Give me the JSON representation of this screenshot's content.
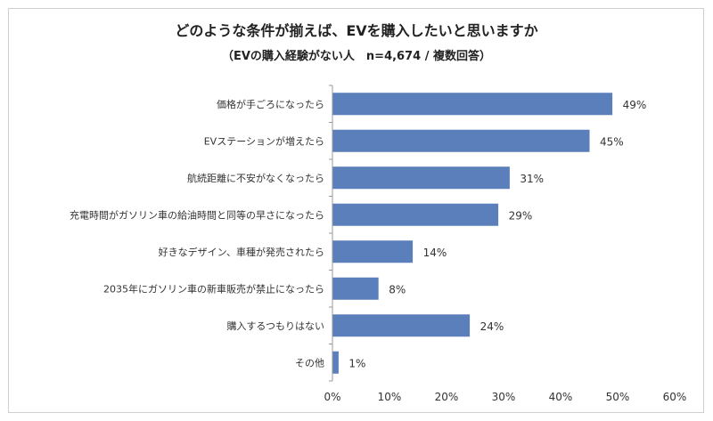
{
  "chart_data": {
    "type": "bar",
    "orientation": "horizontal",
    "title": "どのような条件が揃えば、EVを購入したいと思いますか",
    "subtitle": "（EVの購入経験がない人　n=4,674 / 複数回答）",
    "categories": [
      "価格が手ごろになったら",
      "EVステーションが増えたら",
      "航続距離に不安がなくなったら",
      "充電時間がガソリン車の給油時間と同等の早さになったら",
      "好きなデザイン、車種が発売されたら",
      "2035年にガソリン車の新車販売が禁止になったら",
      "購入するつもりはない",
      "その他"
    ],
    "values": [
      49,
      45,
      31,
      29,
      14,
      8,
      24,
      1
    ],
    "value_labels": [
      "49%",
      "45%",
      "31%",
      "29%",
      "14%",
      "8%",
      "24%",
      "1%"
    ],
    "xlim": [
      0,
      60
    ],
    "xticks": [
      0,
      10,
      20,
      30,
      40,
      50,
      60
    ],
    "xtick_labels": [
      "0%",
      "10%",
      "20%",
      "30%",
      "40%",
      "50%",
      "60%"
    ],
    "bar_color": "#5b7fbb",
    "grid": false
  }
}
